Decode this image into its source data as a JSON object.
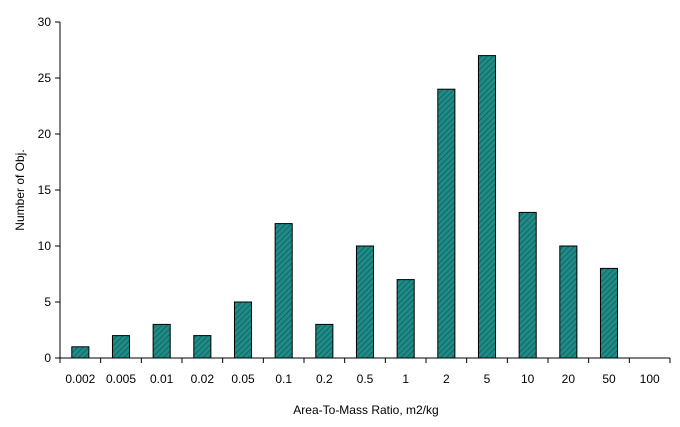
{
  "chart_data": {
    "type": "bar",
    "title": "",
    "xlabel": "Area-To-Mass Ratio, m2/kg",
    "ylabel": "Number of Obj.",
    "categories": [
      "0.002",
      "0.005",
      "0.01",
      "0.02",
      "0.05",
      "0.1",
      "0.2",
      "0.5",
      "1",
      "2",
      "5",
      "10",
      "20",
      "50",
      "100"
    ],
    "values": [
      1,
      2,
      3,
      2,
      5,
      12,
      3,
      10,
      7,
      24,
      27,
      13,
      10,
      8,
      0
    ],
    "ylim": [
      0,
      30
    ],
    "yticks": [
      0,
      5,
      10,
      15,
      20,
      25,
      30
    ],
    "grid": false,
    "legend": "none",
    "bar_color": "#1f8a86",
    "bar_pattern": "diagonal-hatch"
  }
}
